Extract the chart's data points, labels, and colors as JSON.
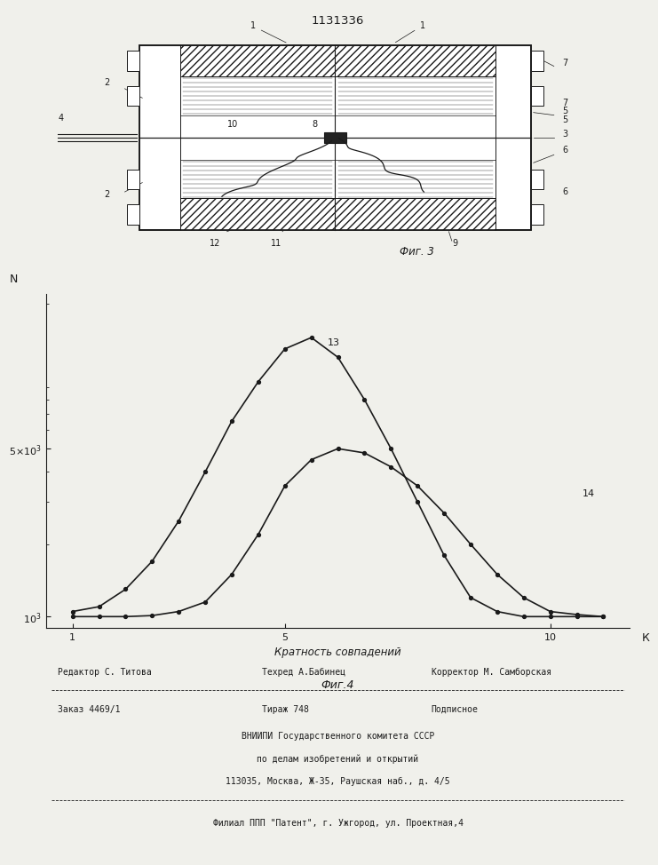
{
  "patent_number": "1131336",
  "fig3_label": "Фиг. 3",
  "fig4_label": "Фиг.4",
  "xlabel": "Кратность совпадений",
  "curve13_label": "13",
  "curve14_label": "14",
  "curve13_x": [
    1,
    1.5,
    2,
    2.5,
    3,
    3.5,
    4,
    4.5,
    5,
    5.5,
    6,
    6.5,
    7,
    7.5,
    8,
    8.5,
    9,
    9.5,
    10,
    10.5,
    11
  ],
  "curve13_y": [
    1050,
    1100,
    1300,
    1700,
    2500,
    4000,
    6500,
    9500,
    13000,
    14500,
    12000,
    8000,
    5000,
    3000,
    1800,
    1200,
    1050,
    1000,
    1000,
    1000,
    1000
  ],
  "curve14_x": [
    1,
    1.5,
    2,
    2.5,
    3,
    3.5,
    4,
    4.5,
    5,
    5.5,
    6,
    6.5,
    7,
    7.5,
    8,
    8.5,
    9,
    9.5,
    10,
    10.5,
    11
  ],
  "curve14_y": [
    1000,
    1000,
    1000,
    1010,
    1050,
    1150,
    1500,
    2200,
    3500,
    4500,
    5000,
    4800,
    4200,
    3500,
    2700,
    2000,
    1500,
    1200,
    1050,
    1020,
    1000
  ],
  "editor_line": "Редактор С. Титова",
  "tehred_line": "Техред А.Бабинец",
  "corrector_line": "Корректор М. Самборская",
  "order_line": "Заказ 4469/1",
  "tirazh_line": "Тираж 748",
  "podpisnoe_line": "Подписное",
  "vniip1": "ВНИИПИ Государственного комитета СССР",
  "vniip2": "по делам изобретений и открытий",
  "vniip3": "113035, Москва, Ж-35, Раушская наб., д. 4/5",
  "filial": "Филиал ППП \"Патент\", г. Ужгород, ул. Проектная,4",
  "bg_color": "#f0f0eb",
  "line_color": "#1a1a1a"
}
